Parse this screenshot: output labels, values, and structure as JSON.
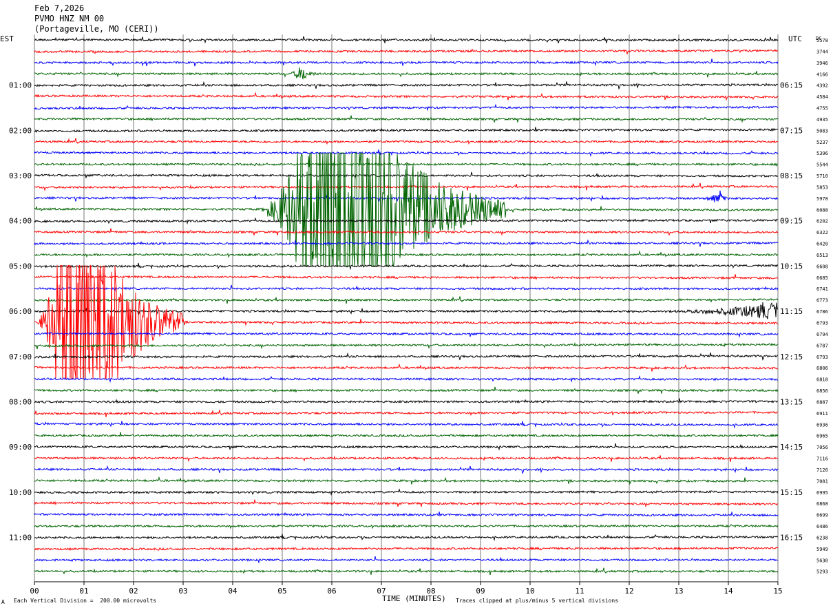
{
  "header": {
    "date": "Feb 7,2026",
    "station": "PVMO HNZ NM 00",
    "location": "(Portageville, MO (CERI))"
  },
  "footer": {
    "scale_note": "Each Vertical Division =  200.00 microvolts",
    "clip_note": "Traces clipped at plus/minus 5 vertical divisions",
    "corner_mark": "A"
  },
  "chart_data": {
    "type": "helicorder",
    "xlabel": "TIME (MINUTES)",
    "x_ticks": [
      "00",
      "01",
      "02",
      "03",
      "04",
      "05",
      "06",
      "07",
      "08",
      "09",
      "10",
      "11",
      "12",
      "13",
      "14",
      "15"
    ],
    "xlim": [
      0,
      15
    ],
    "left_axis_label": "EST",
    "right_axis_label": "UTC",
    "dc_label": "DC",
    "left_time_labels": [
      "01:00",
      "02:00",
      "03:00",
      "04:00",
      "05:00",
      "06:00",
      "07:00",
      "08:00",
      "09:00",
      "10:00",
      "11:00"
    ],
    "right_time_labels": [
      "06:15",
      "07:15",
      "08:15",
      "09:15",
      "10:15",
      "11:15",
      "12:15",
      "13:15",
      "14:15",
      "15:15",
      "16:15"
    ],
    "trace_colors": [
      "#000000",
      "#ff0000",
      "#0000ff",
      "#006400"
    ],
    "grid": true,
    "dc_offsets": [
      5578,
      3744,
      3946,
      4166,
      4392,
      4584,
      4755,
      4935,
      5083,
      5237,
      5396,
      5544,
      5710,
      5853,
      5978,
      6088,
      6202,
      6322,
      6420,
      6513,
      6608,
      6685,
      6741,
      6773,
      6786,
      6793,
      6794,
      6787,
      6793,
      6806,
      6818,
      6856,
      6887,
      6911,
      6936,
      6965,
      7056,
      7116,
      7120,
      7081,
      6995,
      6868,
      6699,
      6486,
      6238,
      5949,
      5630,
      5293
    ],
    "events": [
      {
        "trace_index": 15,
        "start_min": 4.5,
        "end_min": 9.5,
        "peak_min": 6.0,
        "clipped": true
      },
      {
        "trace_index": 25,
        "start_min": 0.0,
        "end_min": 3.0,
        "peak_min": 0.8,
        "clipped": true
      },
      {
        "trace_index": 14,
        "start_min": 13.5,
        "end_min": 14.0,
        "peak_min": 13.85,
        "clipped": false
      },
      {
        "trace_index": 24,
        "start_min": 12.6,
        "end_min": 15.0,
        "peak_min": 15.0,
        "clipped": false
      },
      {
        "trace_index": 3,
        "start_min": 5.1,
        "end_min": 5.7,
        "peak_min": 5.4,
        "clipped": false
      }
    ]
  }
}
